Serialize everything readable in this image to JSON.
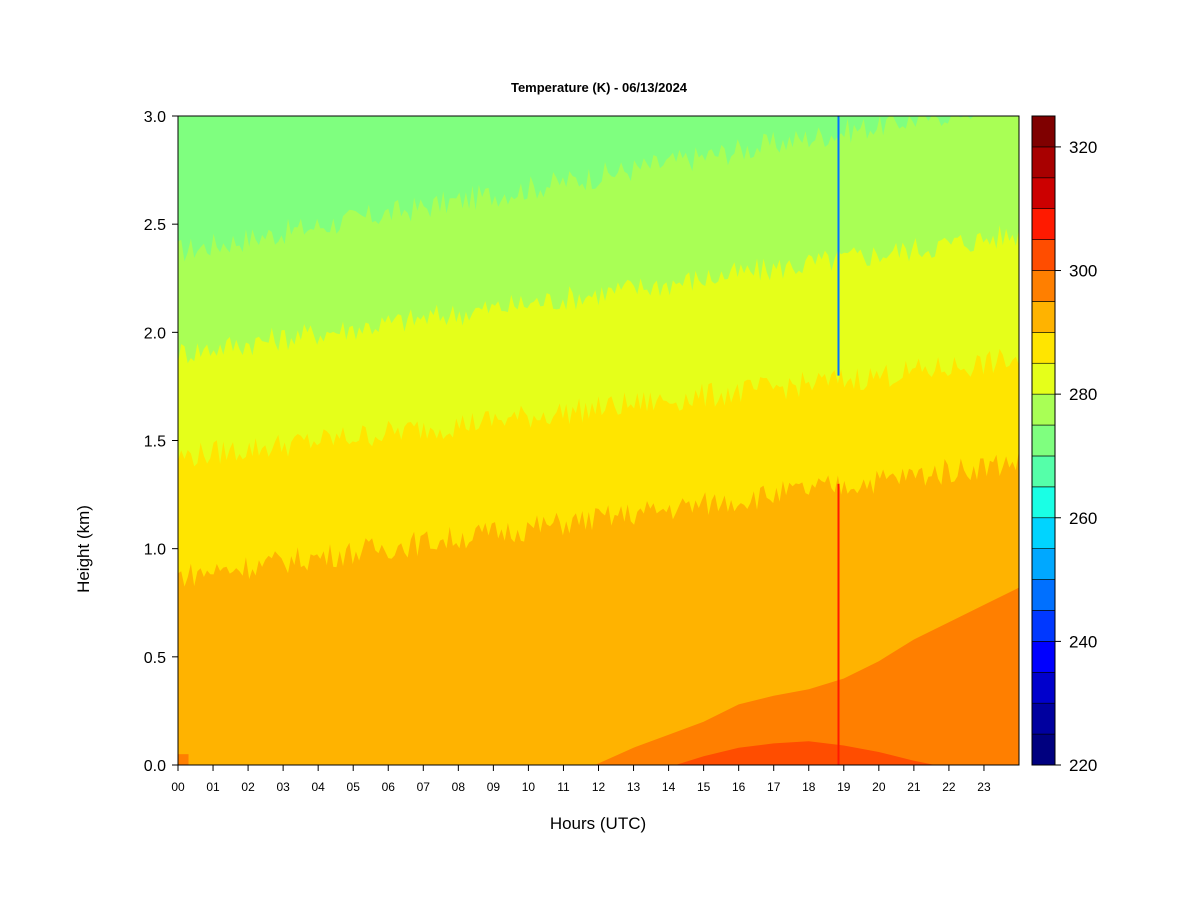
{
  "chart_data": {
    "type": "heatmap",
    "title": "Temperature (K) - 06/13/2024",
    "xlabel": "Hours (UTC)",
    "ylabel": "Height (km)",
    "x_ticks": [
      "00",
      "01",
      "02",
      "03",
      "04",
      "05",
      "06",
      "07",
      "08",
      "09",
      "10",
      "11",
      "12",
      "13",
      "14",
      "15",
      "16",
      "17",
      "18",
      "19",
      "20",
      "21",
      "22",
      "23"
    ],
    "x_range": [
      0,
      24
    ],
    "y_ticks": [
      "0.0",
      "0.5",
      "1.0",
      "1.5",
      "2.0",
      "2.5",
      "3.0"
    ],
    "y_range": [
      0,
      3.0
    ],
    "colorbar": {
      "range": [
        220,
        325
      ],
      "step": 5,
      "tick_labels": [
        "220",
        "240",
        "260",
        "280",
        "300",
        "320"
      ],
      "colors": [
        "#00007f",
        "#00009f",
        "#0000cc",
        "#0000ff",
        "#0038ff",
        "#0070ff",
        "#00a8ff",
        "#00d4ff",
        "#1affe5",
        "#55ffa9",
        "#7fff7f",
        "#a9ff55",
        "#e5ff1a",
        "#ffe500",
        "#ffb300",
        "#ff7f00",
        "#ff4d00",
        "#ff1a00",
        "#cc0000",
        "#a80000",
        "#7f0000"
      ]
    },
    "isotherms_height_km": [
      {
        "from_temp": 270,
        "to_temp": 275,
        "start_hour": 0,
        "start_height": 2.35,
        "end_hour": 24,
        "end_height": 3.05
      },
      {
        "from_temp": 275,
        "to_temp": 280,
        "start_hour": 0,
        "start_height": 1.88,
        "end_hour": 24,
        "end_height": 2.43
      },
      {
        "from_temp": 280,
        "to_temp": 285,
        "start_hour": 0,
        "start_height": 1.4,
        "end_hour": 24,
        "end_height": 1.85
      },
      {
        "from_temp": 285,
        "to_temp": 290,
        "start_hour": 0,
        "start_height": 0.85,
        "end_hour": 24,
        "end_height": 1.38
      }
    ],
    "surface_warm_regions": [
      {
        "temp": 295,
        "x": [
          11.9,
          13,
          14,
          15,
          16,
          17,
          18,
          19,
          20,
          21,
          22,
          23,
          24
        ],
        "y": [
          0.0,
          0.08,
          0.14,
          0.2,
          0.28,
          0.32,
          0.35,
          0.4,
          0.48,
          0.58,
          0.66,
          0.74,
          0.82
        ]
      },
      {
        "temp": 300,
        "x": [
          14.2,
          15,
          16,
          17,
          18,
          19,
          20,
          21,
          21.6
        ],
        "y": [
          0.0,
          0.04,
          0.08,
          0.1,
          0.11,
          0.09,
          0.06,
          0.02,
          0.0
        ]
      }
    ],
    "anomalies": [
      {
        "hour": 18.85,
        "temp": 245,
        "height_from": 1.8,
        "height_to": 3.0
      },
      {
        "hour": 18.85,
        "temp": 305,
        "height_from": 0.0,
        "height_to": 1.3
      }
    ]
  }
}
